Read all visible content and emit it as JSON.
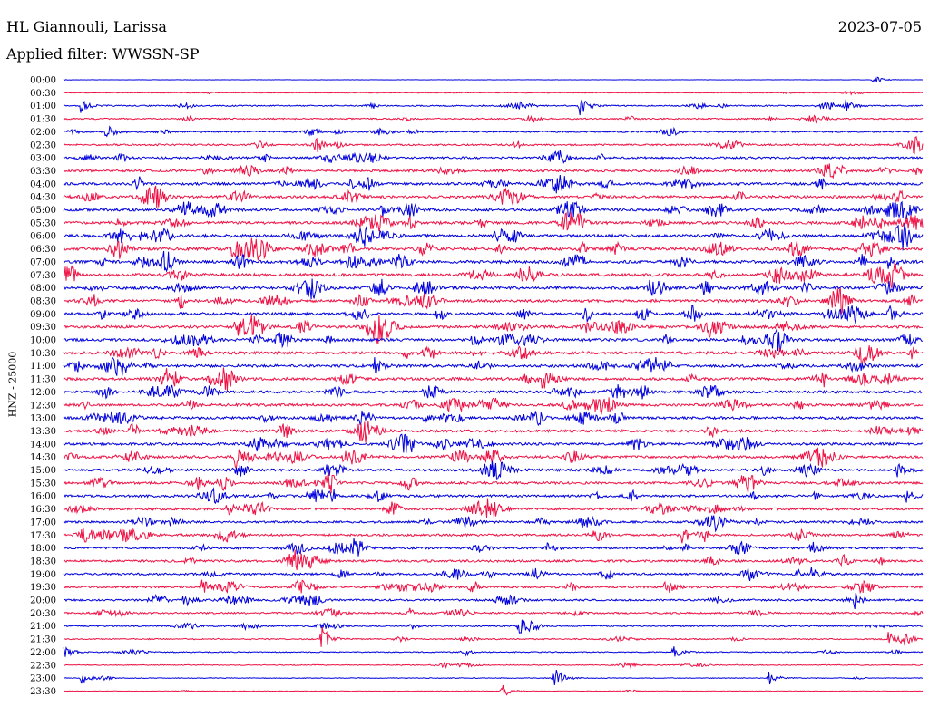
{
  "header": {
    "station": "HL Giannouli, Larissa",
    "date": "2023-07-05",
    "filter_prefix": "Applied filter:",
    "filter_name": "WWSSN-SP"
  },
  "axis": {
    "ylabel": "HNZ - 25000"
  },
  "colors": {
    "even_row": "#0000dd",
    "odd_row": "#ee1144",
    "background": "#ffffff"
  },
  "chart_data": {
    "type": "line",
    "title": "HL Giannouli, Larissa",
    "subtitle": "Applied filter: WWSSN-SP",
    "ylabel": "HNZ - 25000",
    "xlabel": "",
    "rows": [
      "00:00",
      "00:30",
      "01:00",
      "01:30",
      "02:00",
      "02:30",
      "03:00",
      "03:30",
      "04:00",
      "04:30",
      "05:00",
      "05:30",
      "06:00",
      "06:30",
      "07:00",
      "07:30",
      "08:00",
      "08:30",
      "09:00",
      "09:30",
      "10:00",
      "10:30",
      "11:00",
      "11:30",
      "12:00",
      "12:30",
      "13:00",
      "13:30",
      "14:00",
      "14:30",
      "15:00",
      "15:30",
      "16:00",
      "16:30",
      "17:00",
      "17:30",
      "18:00",
      "18:30",
      "19:00",
      "19:30",
      "20:00",
      "20:30",
      "21:00",
      "21:30",
      "22:00",
      "22:30",
      "23:00",
      "23:30"
    ],
    "row_colors": [
      "blue",
      "red"
    ],
    "noise_level": [
      0.3,
      0.8,
      1.5,
      1.6,
      1.8,
      2.0,
      2.4,
      2.6,
      3.0,
      3.0,
      3.2,
      3.2,
      3.4,
      3.4,
      3.4,
      3.4,
      3.4,
      3.2,
      3.2,
      3.2,
      3.2,
      3.2,
      3.2,
      3.2,
      3.0,
      3.0,
      3.0,
      3.0,
      3.0,
      3.0,
      2.8,
      2.8,
      2.8,
      2.8,
      2.6,
      2.6,
      2.6,
      2.6,
      2.4,
      2.4,
      2.2,
      2.0,
      1.6,
      1.4,
      1.2,
      1.0,
      0.8,
      0.6
    ],
    "events": [
      {
        "row": 0,
        "t": 0.94,
        "amp": 7
      },
      {
        "row": 2,
        "t": 0.02,
        "amp": 8
      },
      {
        "row": 2,
        "t": 0.6,
        "amp": 12
      },
      {
        "row": 2,
        "t": 0.91,
        "amp": 7
      },
      {
        "row": 4,
        "t": 0.05,
        "amp": 8
      },
      {
        "row": 5,
        "t": 0.99,
        "amp": 14
      },
      {
        "row": 10,
        "t": 0.37,
        "amp": 8
      },
      {
        "row": 12,
        "t": 0.37,
        "amp": 9
      },
      {
        "row": 14,
        "t": 0.96,
        "amp": 9
      },
      {
        "row": 16,
        "t": 0.41,
        "amp": 8
      },
      {
        "row": 18,
        "t": 0.96,
        "amp": 12
      },
      {
        "row": 19,
        "t": 0.2,
        "amp": 9
      },
      {
        "row": 20,
        "t": 0.79,
        "amp": 8
      },
      {
        "row": 22,
        "t": 0.36,
        "amp": 12
      },
      {
        "row": 23,
        "t": 0.93,
        "amp": 11
      },
      {
        "row": 23,
        "t": 0.55,
        "amp": 14
      },
      {
        "row": 26,
        "t": 0.42,
        "amp": 8
      },
      {
        "row": 29,
        "t": 0.2,
        "amp": 14
      },
      {
        "row": 30,
        "t": 0.97,
        "amp": 10
      },
      {
        "row": 32,
        "t": 0.98,
        "amp": 8
      },
      {
        "row": 35,
        "t": 0.72,
        "amp": 10
      },
      {
        "row": 36,
        "t": 0.56,
        "amp": 8
      },
      {
        "row": 36,
        "t": 0.87,
        "amp": 9
      },
      {
        "row": 38,
        "t": 0.87,
        "amp": 8
      },
      {
        "row": 39,
        "t": 0.7,
        "amp": 10
      },
      {
        "row": 39,
        "t": 0.16,
        "amp": 10
      },
      {
        "row": 40,
        "t": 0.14,
        "amp": 8
      },
      {
        "row": 40,
        "t": 0.92,
        "amp": 9
      },
      {
        "row": 42,
        "t": 0.53,
        "amp": 11
      },
      {
        "row": 43,
        "t": 0.3,
        "amp": 16
      },
      {
        "row": 43,
        "t": 0.96,
        "amp": 8
      },
      {
        "row": 44,
        "t": 0.0,
        "amp": 8
      },
      {
        "row": 44,
        "t": 0.71,
        "amp": 8
      },
      {
        "row": 46,
        "t": 0.02,
        "amp": 7
      },
      {
        "row": 46,
        "t": 0.57,
        "amp": 14
      },
      {
        "row": 46,
        "t": 0.82,
        "amp": 9
      },
      {
        "row": 47,
        "t": 0.51,
        "amp": 9
      }
    ]
  }
}
